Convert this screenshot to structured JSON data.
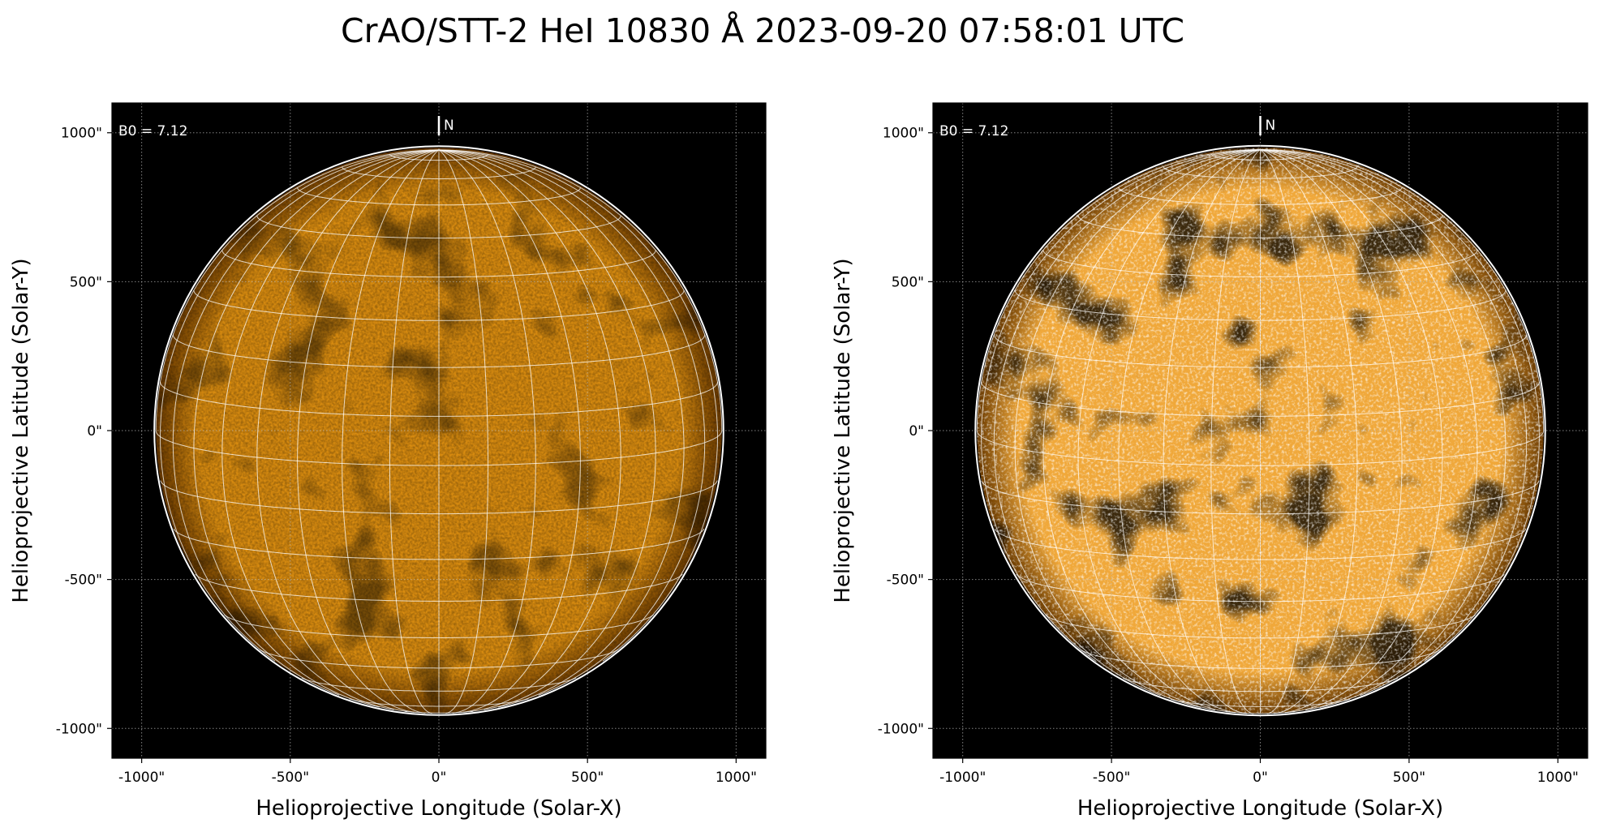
{
  "title": "CrAO/STT-2 HeI 10830 Å 2023-09-20 07:58:01 UTC",
  "chart_data": [
    {
      "type": "image",
      "xlabel": "Helioprojective Longitude (Solar-X)",
      "ylabel": "Helioprojective Latitude (Solar-Y)",
      "xlim": [
        -1100,
        1100
      ],
      "ylim": [
        -1100,
        1100
      ],
      "xticks": [
        {
          "value": -1000,
          "label": "-1000\""
        },
        {
          "value": -500,
          "label": "-500\""
        },
        {
          "value": 0,
          "label": "0\""
        },
        {
          "value": 500,
          "label": "500\""
        },
        {
          "value": 1000,
          "label": "1000\""
        }
      ],
      "yticks": [
        {
          "value": -1000,
          "label": "-1000\""
        },
        {
          "value": -500,
          "label": "-500\""
        },
        {
          "value": 0,
          "label": "0\""
        },
        {
          "value": 500,
          "label": "500\""
        },
        {
          "value": 1000,
          "label": "1000\""
        }
      ],
      "grid": true,
      "disk_radius": 952,
      "color": "#d98c10",
      "annotation": "B0 = 7.12",
      "north_label": "N"
    },
    {
      "type": "image",
      "xlabel": "Helioprojective Longitude (Solar-X)",
      "ylabel": "Helioprojective Latitude (Solar-Y)",
      "xlim": [
        -1100,
        1100
      ],
      "ylim": [
        -1100,
        1100
      ],
      "xticks": [
        {
          "value": -1000,
          "label": "-1000\""
        },
        {
          "value": -500,
          "label": "-500\""
        },
        {
          "value": 0,
          "label": "0\""
        },
        {
          "value": 500,
          "label": "500\""
        },
        {
          "value": 1000,
          "label": "1000\""
        }
      ],
      "yticks": [
        {
          "value": -1000,
          "label": "-1000\""
        },
        {
          "value": -500,
          "label": "-500\""
        },
        {
          "value": 0,
          "label": "0\""
        },
        {
          "value": 500,
          "label": "500\""
        },
        {
          "value": 1000,
          "label": "1000\""
        }
      ],
      "grid": true,
      "disk_radius": 952,
      "color": "#f0a83a",
      "annotation": "B0 = 7.12",
      "north_label": "N"
    }
  ]
}
